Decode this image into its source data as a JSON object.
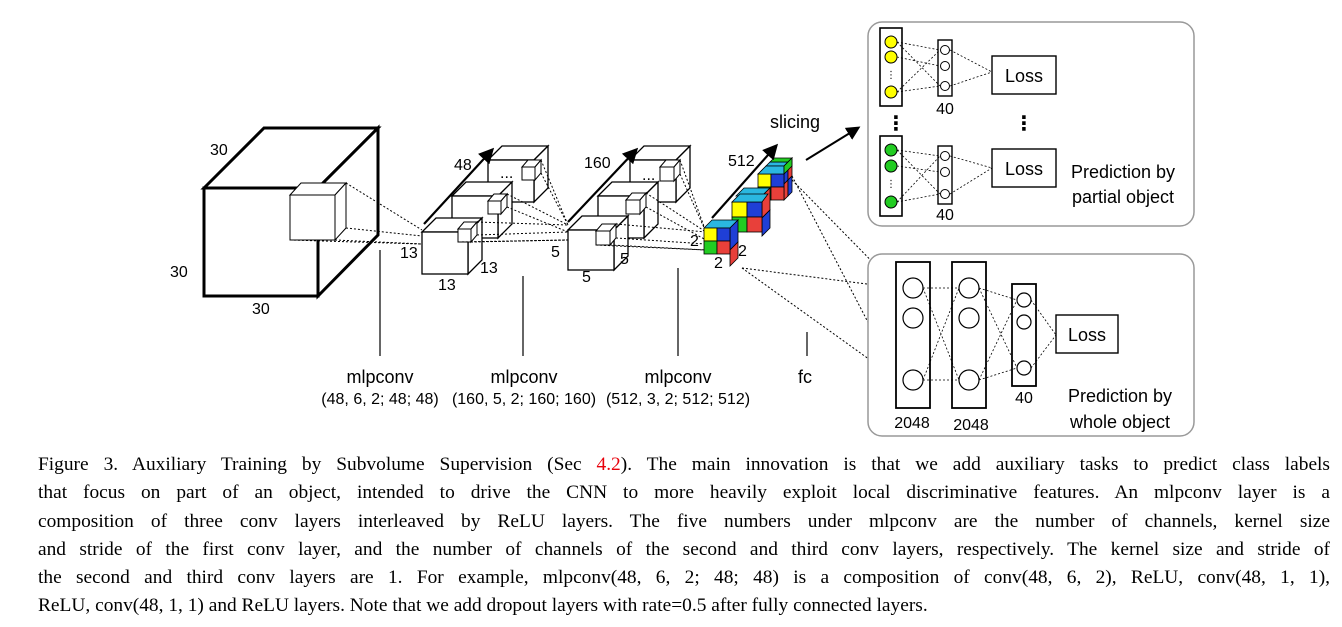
{
  "diagram": {
    "input_cube": {
      "top": "30",
      "left": "30",
      "bottom": "30"
    },
    "layer1": {
      "channels": "48",
      "front": "13",
      "side": "13",
      "bottom": "13",
      "dots": "..."
    },
    "layer2": {
      "channels": "160",
      "front": "5",
      "side": "5",
      "bottom": "5",
      "dots": "..."
    },
    "layer3": {
      "channels": "512",
      "front": "2",
      "side": "2",
      "bottom": "2"
    },
    "mlpconv": [
      {
        "name": "mlpconv",
        "params": "(48, 6, 2; 48; 48)"
      },
      {
        "name": "mlpconv",
        "params": "(160, 5, 2; 160; 160)"
      },
      {
        "name": "mlpconv",
        "params": "(512, 3, 2; 512; 512)"
      }
    ],
    "fc_label": "fc",
    "slicing_label": "slicing",
    "partial_panel": {
      "hidden_top": "40",
      "hidden_bottom": "40",
      "loss_top": "Loss",
      "loss_bottom": "Loss",
      "ellipsis": "⋮",
      "title_line1": "Prediction by",
      "title_line2": "partial object"
    },
    "whole_panel": {
      "fc1": "2048",
      "fc2": "2048",
      "out": "40",
      "loss": "Loss",
      "title_line1": "Prediction by",
      "title_line2": "whole object"
    },
    "colors": {
      "yellow": "#ffff00",
      "green": "#22cc22",
      "blue": "#1f3fd6",
      "red": "#e8403a",
      "cyan": "#2ab7e0",
      "panel_border": "#999999"
    }
  },
  "caption": {
    "l1a": "Figure 3. Auxiliary Training by Subvolume Supervision (Sec ",
    "l1ref": "4.2",
    "l1b": "). The main innovation is that we add auxiliary tasks to predict class labels",
    "l2": "that focus on part of an object, intended to drive the CNN to more heavily exploit local discriminative features. An mlpconv layer is a",
    "l3": "composition of three conv layers interleaved by ReLU layers. The five numbers under mlpconv are the number of channels, kernel size",
    "l4": "and stride of the first conv layer, and the number of channels of the second and third conv layers, respectively. The kernel size and stride of",
    "l5": "the second and third conv layers are 1. For example, mlpconv(48, 6, 2; 48; 48) is a composition of conv(48, 6, 2), ReLU, conv(48, 1, 1),",
    "l6": "ReLU, conv(48, 1, 1) and ReLU layers. Note that we add dropout layers with rate=0.5 after fully connected layers."
  }
}
